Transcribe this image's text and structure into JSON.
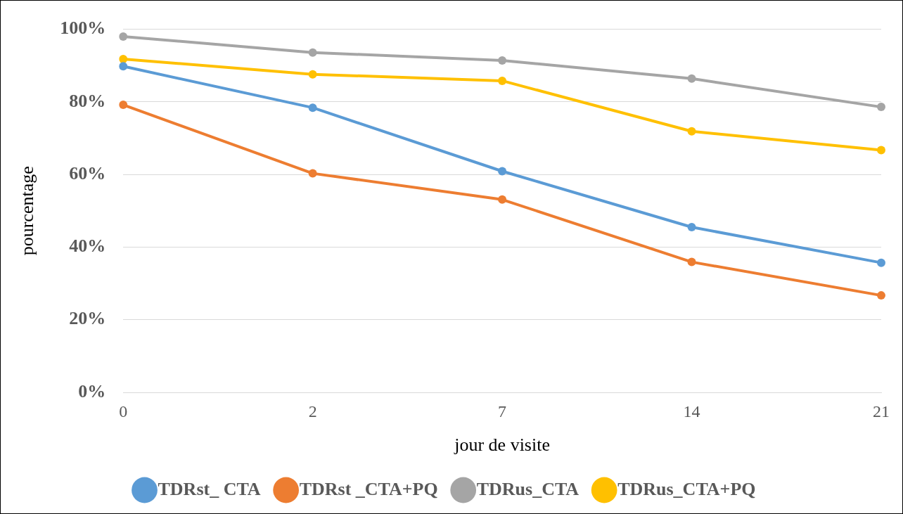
{
  "chart_data": {
    "type": "line",
    "xlabel": "jour de visite",
    "ylabel": "pourcentage",
    "categories": [
      "0",
      "2",
      "7",
      "14",
      "21"
    ],
    "series": [
      {
        "name": "TDRst_ CTA",
        "color": "#5b9bd5",
        "values": [
          89.8,
          78.4,
          60.9,
          45.5,
          35.7
        ]
      },
      {
        "name": "TDRst _CTA+PQ",
        "color": "#ed7d31",
        "values": [
          79.2,
          60.3,
          53.1,
          35.9,
          26.7
        ]
      },
      {
        "name": "TDRus_CTA",
        "color": "#a5a5a5",
        "values": [
          98.0,
          93.6,
          91.4,
          86.4,
          78.6
        ]
      },
      {
        "name": "TDRus_CTA+PQ",
        "color": "#ffc000",
        "values": [
          91.8,
          87.6,
          85.8,
          71.9,
          66.7
        ]
      }
    ],
    "ylim": [
      0,
      100
    ],
    "yticks": [
      {
        "value": 0,
        "label": "0%"
      },
      {
        "value": 20,
        "label": "20%"
      },
      {
        "value": 40,
        "label": "40%"
      },
      {
        "value": 60,
        "label": "60%"
      },
      {
        "value": 80,
        "label": "80%"
      },
      {
        "value": 100,
        "label": "100%"
      }
    ],
    "grid": "y",
    "legend": "bottom",
    "marker": "circle",
    "line_style": "solid"
  }
}
